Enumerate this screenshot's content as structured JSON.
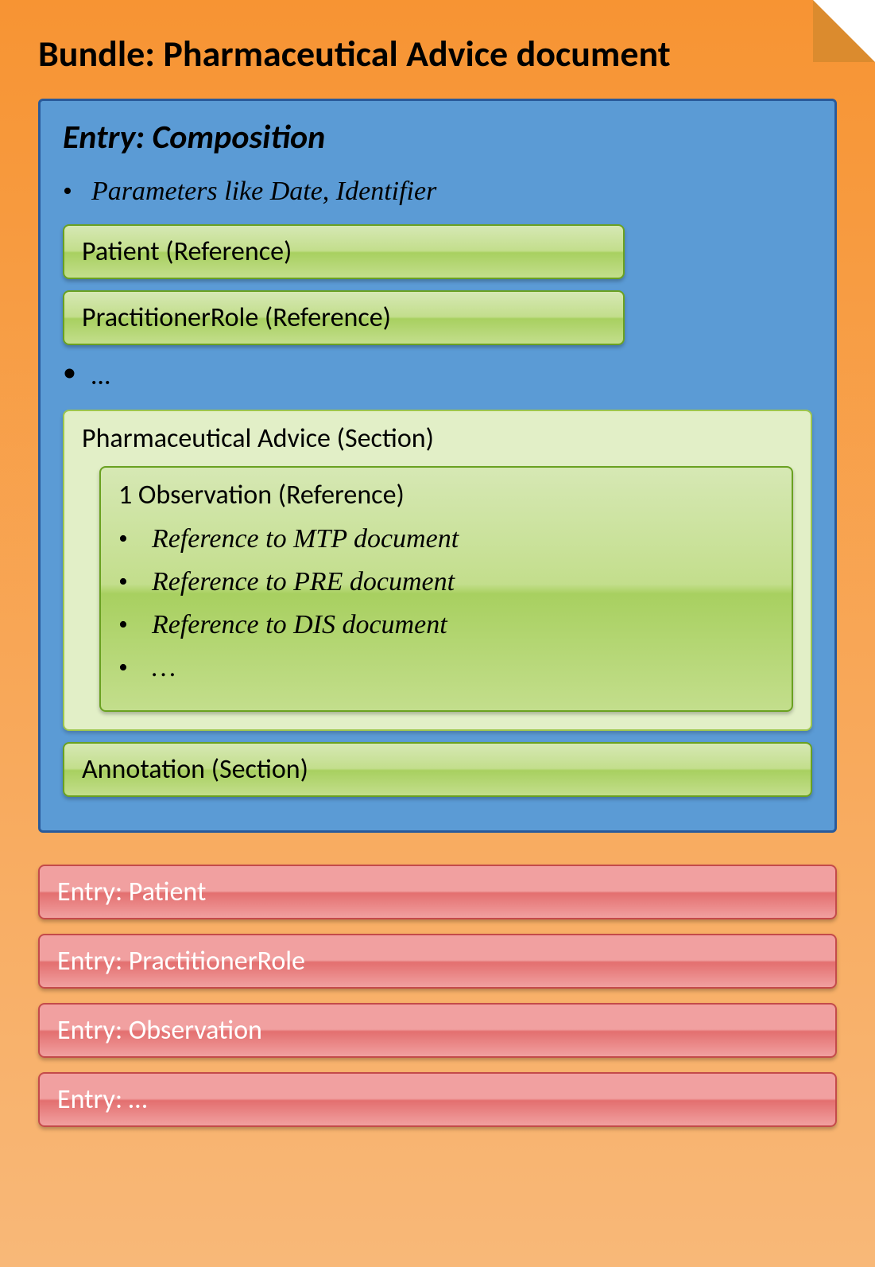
{
  "colors": {
    "bundle_bg_top": "#f79433",
    "bundle_bg_bottom": "#f8b878",
    "fold_shadow": "#db8b2e",
    "composition_bg": "#5b9bd5",
    "composition_border": "#2a5a9a",
    "green_light": "#d6e8b4",
    "green_mid_top": "#c3de8c",
    "green_mid_bottom": "#a8d060",
    "green_border": "#6aa121",
    "section_bg": "#e2efc7",
    "section_border": "#9ec64d",
    "red_top": "#f1a0a0",
    "red_bottom": "#e36f6f",
    "red_border": "#c44a4a",
    "text_black": "#000000",
    "text_white": "#ffffff"
  },
  "bundle": {
    "title": "Bundle: Pharmaceutical Advice document"
  },
  "composition": {
    "title": "Entry: Composition",
    "param_bullet": "Parameters like Date, Identifier",
    "patient_ref": "Patient (Reference)",
    "practitioner_ref": "PractitionerRole (Reference)",
    "ellipsis": "…",
    "section": {
      "title": "Pharmaceutical Advice (Section)",
      "observation": {
        "title": "1 Observation (Reference)",
        "refs": [
          "Reference to MTP document",
          "Reference to PRE document",
          "Reference to DIS document"
        ],
        "ellipsis": "…"
      }
    },
    "annotation": "Annotation (Section)"
  },
  "entries": [
    "Entry: Patient",
    "Entry: PractitionerRole",
    "Entry: Observation",
    "Entry: …"
  ]
}
